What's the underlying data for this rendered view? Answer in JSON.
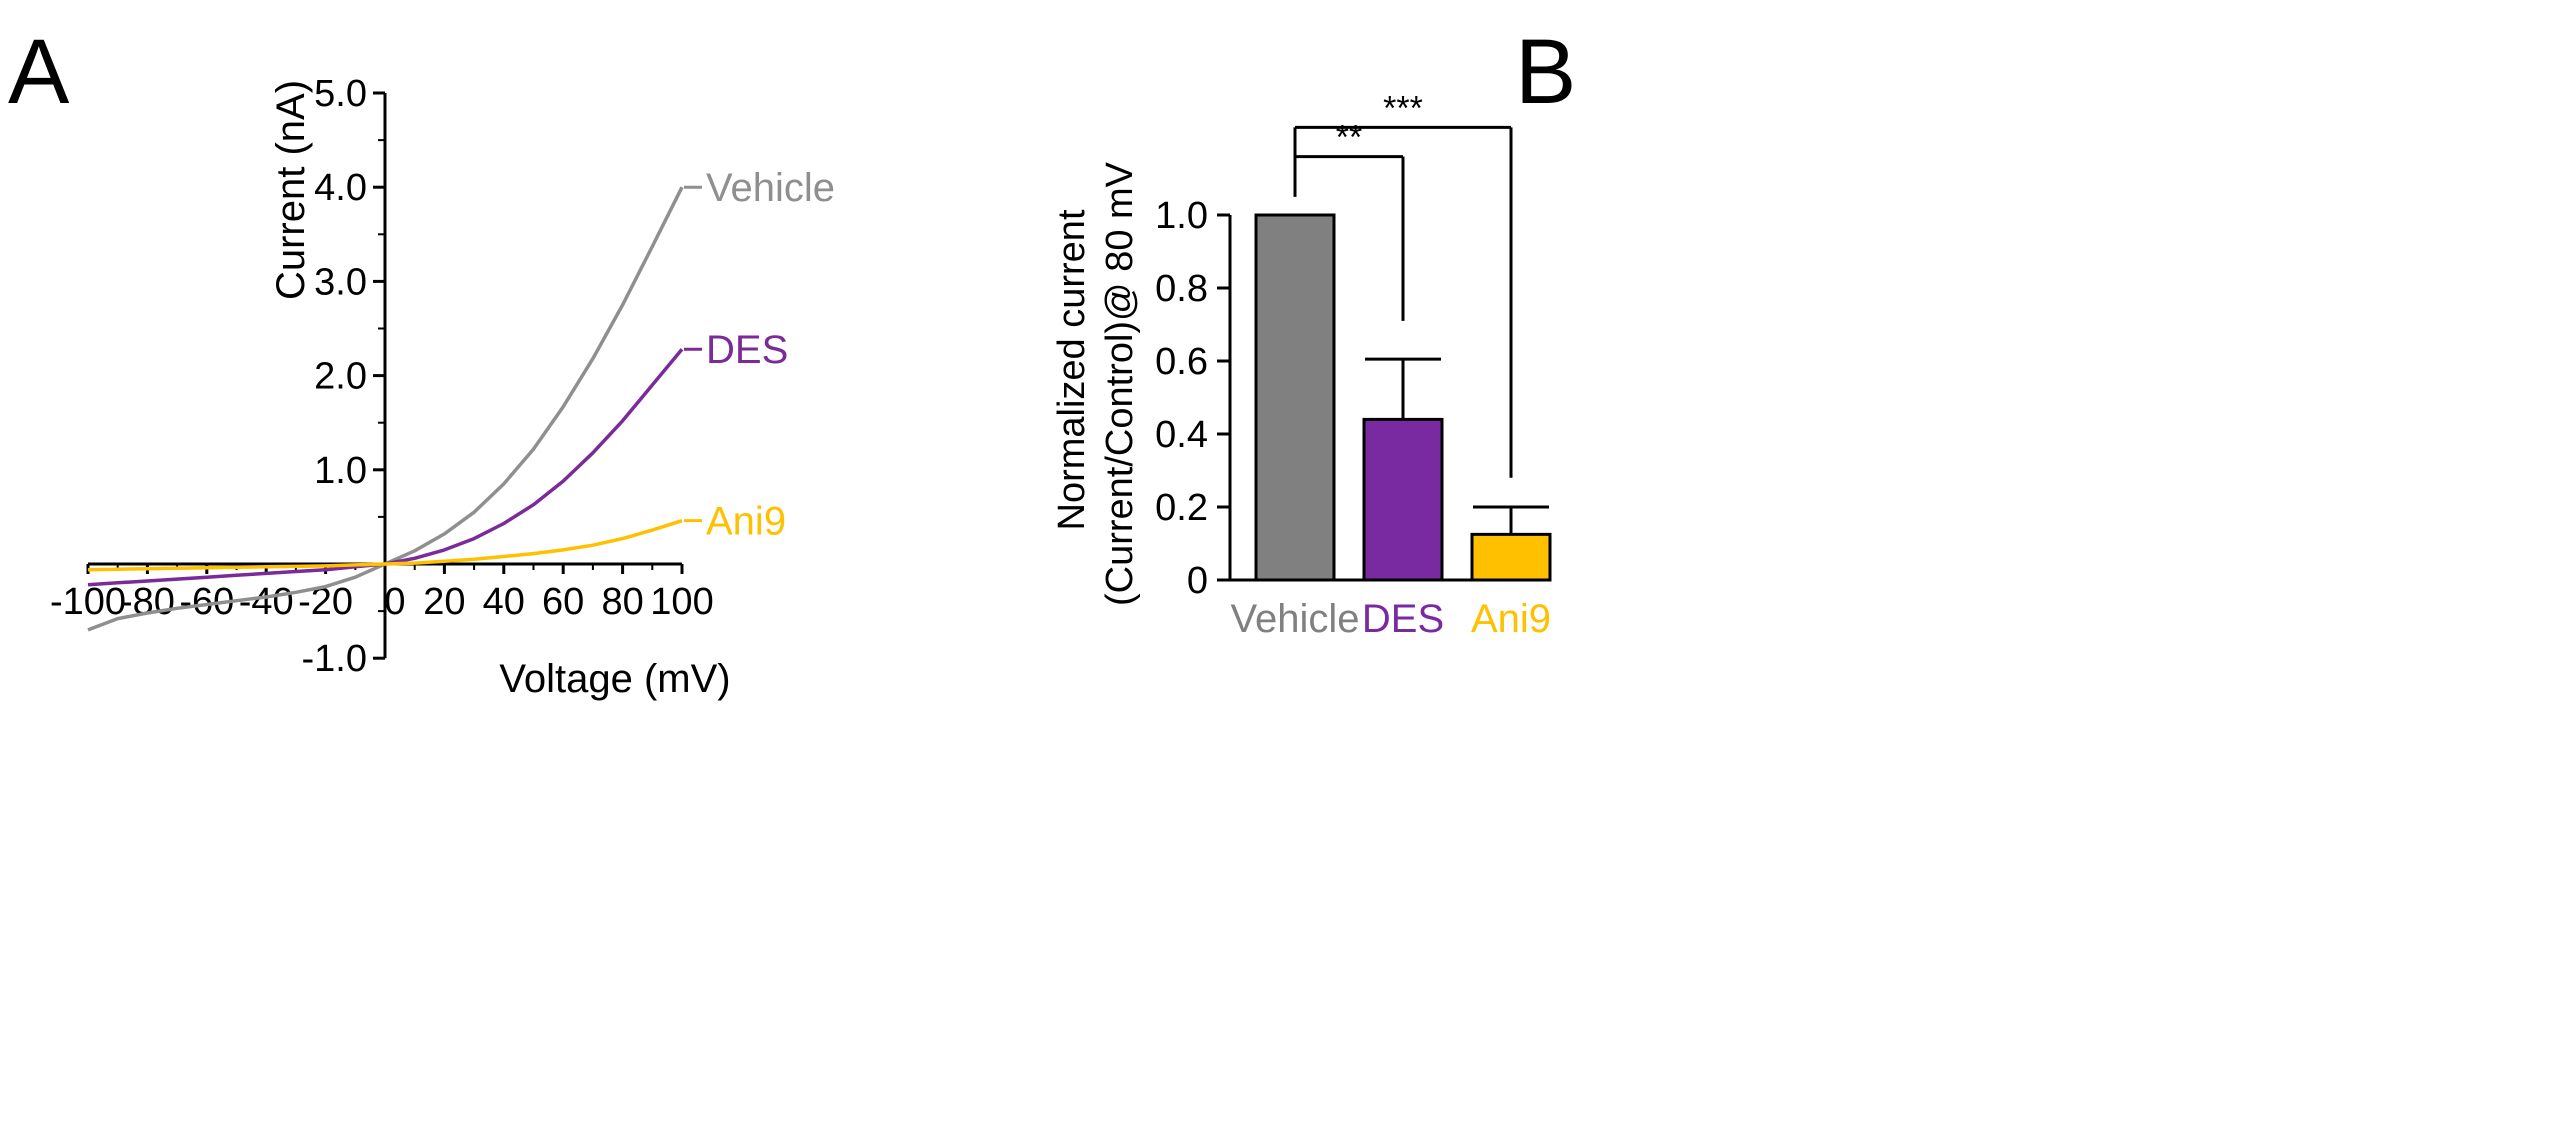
{
  "panels": {
    "a_label": "A",
    "b_label": "B"
  },
  "colors": {
    "vehicle": "#8f8f8f",
    "des": "#7b2a9a",
    "ani9": "#ffc000",
    "bar_vehicle": "#808080",
    "bar_des": "#7a2aa0",
    "bar_ani9": "#ffc000",
    "axis": "#000000"
  },
  "chart_data": [
    {
      "id": "A",
      "type": "line",
      "title": "",
      "xlabel": "Voltage (mV)",
      "ylabel": "Current (nA)",
      "xlim": [
        -100,
        100
      ],
      "ylim": [
        -1.0,
        5.0
      ],
      "x_ticks": [
        -100,
        -80,
        -60,
        -40,
        -20,
        0,
        20,
        40,
        60,
        80,
        100
      ],
      "x_tick_labels": [
        "-100",
        "-80",
        "-60",
        "-40",
        "-20",
        "0",
        "20",
        "40",
        "60",
        "80",
        "100"
      ],
      "y_ticks": [
        -1.0,
        1.0,
        2.0,
        3.0,
        4.0,
        5.0
      ],
      "y_tick_labels": [
        "-1.0",
        "1.0",
        "2.0",
        "3.0",
        "4.0",
        "5.0"
      ],
      "grid": false,
      "series": [
        {
          "name": "Vehicle",
          "color_key": "vehicle",
          "x": [
            -100,
            -90,
            -80,
            -70,
            -60,
            -50,
            -40,
            -30,
            -20,
            -10,
            0,
            10,
            20,
            30,
            40,
            50,
            60,
            70,
            80,
            90,
            100
          ],
          "values": [
            -0.7,
            -0.58,
            -0.52,
            -0.47,
            -0.43,
            -0.39,
            -0.35,
            -0.3,
            -0.24,
            -0.14,
            0.0,
            0.14,
            0.32,
            0.55,
            0.85,
            1.22,
            1.67,
            2.18,
            2.75,
            3.37,
            4.0
          ]
        },
        {
          "name": "DES",
          "color_key": "des",
          "x": [
            -100,
            -90,
            -80,
            -70,
            -60,
            -50,
            -40,
            -30,
            -20,
            -10,
            0,
            10,
            20,
            30,
            40,
            50,
            60,
            70,
            80,
            90,
            100
          ],
          "values": [
            -0.22,
            -0.2,
            -0.18,
            -0.16,
            -0.14,
            -0.12,
            -0.1,
            -0.08,
            -0.06,
            -0.03,
            0.0,
            0.06,
            0.15,
            0.27,
            0.43,
            0.63,
            0.88,
            1.18,
            1.52,
            1.9,
            2.28
          ]
        },
        {
          "name": "Ani9",
          "color_key": "ani9",
          "x": [
            -100,
            -90,
            -80,
            -70,
            -60,
            -50,
            -40,
            -30,
            -20,
            -10,
            0,
            10,
            20,
            30,
            40,
            50,
            60,
            70,
            80,
            90,
            100
          ],
          "values": [
            -0.06,
            -0.055,
            -0.05,
            -0.045,
            -0.04,
            -0.035,
            -0.03,
            -0.025,
            -0.02,
            -0.01,
            0.0,
            0.01,
            0.03,
            0.05,
            0.08,
            0.11,
            0.15,
            0.2,
            0.27,
            0.36,
            0.46
          ]
        }
      ]
    },
    {
      "id": "B",
      "type": "bar",
      "title": "",
      "xlabel": "",
      "ylabel_line1": "Normalized current",
      "ylabel_line2": "(Current/Control)@ 80 mV",
      "ylim": [
        0,
        1.0
      ],
      "y_ticks": [
        0,
        0.2,
        0.4,
        0.6,
        0.8,
        1.0
      ],
      "y_tick_labels": [
        "0",
        "0.2",
        "0.4",
        "0.6",
        "0.8",
        "1.0"
      ],
      "categories": [
        "Vehicle",
        "DES",
        "Ani9"
      ],
      "color_keys": [
        "bar_vehicle",
        "bar_des",
        "bar_ani9"
      ],
      "values": [
        1.0,
        0.44,
        0.125
      ],
      "error": [
        0,
        0.165,
        0.075
      ],
      "significance": [
        {
          "from": "Vehicle",
          "to": "DES",
          "label": "**",
          "level": 1.16,
          "drop_to": 0.71
        },
        {
          "from": "Vehicle",
          "to": "Ani9",
          "label": "***",
          "level": 1.24,
          "drop_to": 0.28
        }
      ],
      "bracket_base": 1.05
    }
  ]
}
